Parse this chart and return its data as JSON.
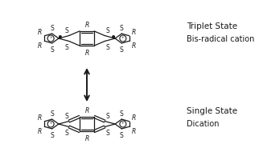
{
  "bg_color": "#ffffff",
  "line_color": "#1a1a1a",
  "text_color": "#1a1a1a",
  "label_triplet": "Triplet State",
  "label_bis": "Bis-radical cation",
  "label_single": "Single State",
  "label_dication": "Dication",
  "fig_width": 3.27,
  "fig_height": 2.01,
  "dpi": 100,
  "font_size_label": 7.5,
  "font_size_atom": 5.5,
  "font_size_R": 5.5
}
